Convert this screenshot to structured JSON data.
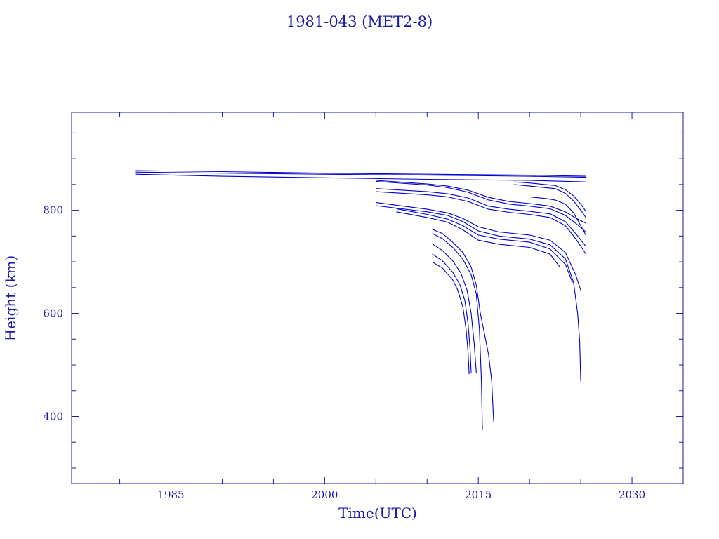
{
  "chart_data": {
    "type": "line",
    "title": "1981-043 (MET2-8)",
    "xlabel": "Time(UTC)",
    "ylabel": "Height (km)",
    "xlim": [
      1975.3,
      2035.0
    ],
    "ylim": [
      270,
      990
    ],
    "x_ticks": [
      1985,
      2000,
      2015,
      2030
    ],
    "y_ticks": [
      400,
      600,
      800
    ],
    "grid": false,
    "legend": "none",
    "color": "#0000cc",
    "series": [
      {
        "values": [
          [
            1981.5,
            877
          ],
          [
            1990,
            875
          ],
          [
            2000,
            872
          ],
          [
            2010,
            870
          ],
          [
            2020,
            868
          ],
          [
            2025.5,
            866
          ]
        ]
      },
      {
        "values": [
          [
            1981.5,
            874
          ],
          [
            1990,
            872
          ],
          [
            2000,
            870
          ],
          [
            2010,
            868
          ],
          [
            2020,
            866
          ],
          [
            2025.5,
            864
          ]
        ]
      },
      {
        "values": [
          [
            1981.5,
            870
          ],
          [
            1990,
            866
          ],
          [
            2000,
            863
          ],
          [
            2010,
            860
          ],
          [
            2020,
            858
          ],
          [
            2025.5,
            855
          ]
        ]
      },
      {
        "values": [
          [
            2005,
            858
          ],
          [
            2010,
            851
          ],
          [
            2012,
            847
          ],
          [
            2014,
            839
          ],
          [
            2016,
            825
          ],
          [
            2018,
            817
          ],
          [
            2020,
            813
          ],
          [
            2022,
            808
          ],
          [
            2023.5,
            797
          ],
          [
            2024.5,
            785
          ],
          [
            2025.5,
            775
          ]
        ]
      },
      {
        "values": [
          [
            2005,
            856
          ],
          [
            2010,
            849
          ],
          [
            2012,
            844
          ],
          [
            2014,
            835
          ],
          [
            2016,
            820
          ],
          [
            2018,
            812
          ],
          [
            2020,
            808
          ],
          [
            2022,
            803
          ],
          [
            2023.5,
            790
          ],
          [
            2024.5,
            775
          ],
          [
            2025.5,
            758
          ]
        ]
      },
      {
        "values": [
          [
            2005,
            842
          ],
          [
            2010,
            836
          ],
          [
            2012,
            832
          ],
          [
            2014,
            824
          ],
          [
            2016,
            808
          ],
          [
            2018,
            802
          ],
          [
            2020,
            798
          ],
          [
            2022,
            793
          ],
          [
            2023.5,
            778
          ],
          [
            2024.5,
            755
          ],
          [
            2025.5,
            730
          ]
        ]
      },
      {
        "values": [
          [
            2005,
            836
          ],
          [
            2010,
            830
          ],
          [
            2012,
            826
          ],
          [
            2014,
            817
          ],
          [
            2016,
            802
          ],
          [
            2018,
            796
          ],
          [
            2020,
            792
          ],
          [
            2022,
            786
          ],
          [
            2023.5,
            770
          ],
          [
            2024.5,
            745
          ],
          [
            2025.5,
            715
          ]
        ]
      },
      {
        "values": [
          [
            2005,
            815
          ],
          [
            2010,
            802
          ],
          [
            2012,
            795
          ],
          [
            2013.5,
            784
          ],
          [
            2015,
            768
          ],
          [
            2017,
            758
          ],
          [
            2020,
            752
          ],
          [
            2022,
            742
          ],
          [
            2023.5,
            718
          ],
          [
            2024.5,
            675
          ],
          [
            2025,
            645
          ]
        ]
      },
      {
        "values": [
          [
            2005,
            809
          ],
          [
            2010,
            797
          ],
          [
            2012,
            790
          ],
          [
            2013.5,
            778
          ],
          [
            2015,
            760
          ],
          [
            2017,
            750
          ],
          [
            2020,
            744
          ],
          [
            2022,
            733
          ],
          [
            2023.5,
            706
          ],
          [
            2024.3,
            660
          ],
          [
            2024.7,
            600
          ],
          [
            2024.9,
            545
          ],
          [
            2025,
            468
          ]
        ]
      },
      {
        "values": [
          [
            2007,
            803
          ],
          [
            2010,
            792
          ],
          [
            2012,
            783
          ],
          [
            2013.5,
            770
          ],
          [
            2015,
            752
          ],
          [
            2017,
            744
          ],
          [
            2020,
            738
          ],
          [
            2022,
            725
          ],
          [
            2023.5,
            695
          ],
          [
            2024.2,
            660
          ]
        ]
      },
      {
        "values": [
          [
            2007,
            797
          ],
          [
            2010,
            786
          ],
          [
            2012,
            777
          ],
          [
            2013.5,
            762
          ],
          [
            2015,
            742
          ],
          [
            2017,
            734
          ],
          [
            2020,
            728
          ],
          [
            2022,
            715
          ],
          [
            2023,
            689
          ]
        ]
      },
      {
        "values": [
          [
            2010.5,
            763
          ],
          [
            2011.5,
            755
          ],
          [
            2012.5,
            738
          ],
          [
            2013.5,
            718
          ],
          [
            2014.3,
            690
          ],
          [
            2014.8,
            655
          ],
          [
            2015.2,
            600
          ],
          [
            2015.6,
            560
          ],
          [
            2016,
            520
          ],
          [
            2016.3,
            470
          ],
          [
            2016.5,
            390
          ]
        ]
      },
      {
        "values": [
          [
            2010.5,
            755
          ],
          [
            2011.5,
            745
          ],
          [
            2012.5,
            728
          ],
          [
            2013.5,
            705
          ],
          [
            2014.3,
            675
          ],
          [
            2014.8,
            638
          ],
          [
            2015.1,
            570
          ],
          [
            2015.3,
            470
          ],
          [
            2015.4,
            375
          ]
        ]
      },
      {
        "values": [
          [
            2010.5,
            735
          ],
          [
            2011.5,
            722
          ],
          [
            2012.5,
            702
          ],
          [
            2013.3,
            678
          ],
          [
            2013.9,
            645
          ],
          [
            2014.3,
            600
          ],
          [
            2014.6,
            540
          ],
          [
            2014.8,
            485
          ]
        ]
      },
      {
        "values": [
          [
            2010.5,
            715
          ],
          [
            2011.5,
            702
          ],
          [
            2012.5,
            680
          ],
          [
            2013.2,
            656
          ],
          [
            2013.7,
            624
          ],
          [
            2014,
            580
          ],
          [
            2014.2,
            530
          ],
          [
            2014.3,
            485
          ]
        ]
      },
      {
        "values": [
          [
            2010.5,
            700
          ],
          [
            2011.5,
            688
          ],
          [
            2012.5,
            665
          ],
          [
            2013,
            645
          ],
          [
            2013.5,
            612
          ],
          [
            2013.8,
            570
          ],
          [
            2014,
            525
          ],
          [
            2014.1,
            482
          ]
        ]
      },
      {
        "values": [
          [
            2018.5,
            855
          ],
          [
            2020,
            853
          ],
          [
            2021.5,
            850
          ],
          [
            2022.5,
            848
          ],
          [
            2023.5,
            840
          ],
          [
            2024.3,
            828
          ],
          [
            2025,
            812
          ],
          [
            2025.5,
            798
          ]
        ]
      },
      {
        "values": [
          [
            2018.5,
            850
          ],
          [
            2020,
            847
          ],
          [
            2021.5,
            844
          ],
          [
            2022.5,
            842
          ],
          [
            2023.5,
            833
          ],
          [
            2024.3,
            818
          ],
          [
            2025,
            800
          ],
          [
            2025.5,
            786
          ]
        ]
      },
      {
        "values": [
          [
            2020,
            826
          ],
          [
            2021.5,
            823
          ],
          [
            2022.5,
            820
          ],
          [
            2023.5,
            812
          ],
          [
            2024.3,
            795
          ],
          [
            2025,
            770
          ],
          [
            2025.5,
            752
          ]
        ]
      }
    ]
  }
}
